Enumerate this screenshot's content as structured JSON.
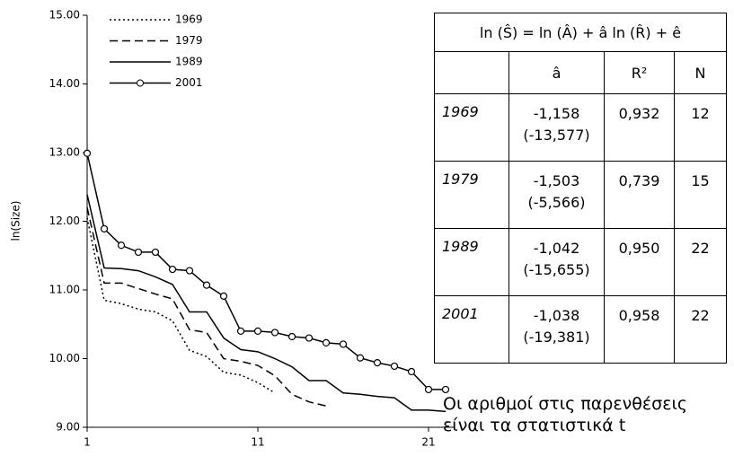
{
  "chart_data": {
    "type": "line",
    "ylabel": "ln(Size)",
    "x": [
      1,
      2,
      3,
      4,
      5,
      6,
      7,
      8,
      9,
      10,
      11,
      12,
      13,
      14,
      15,
      16,
      17,
      18,
      19,
      20,
      21,
      22
    ],
    "xlim": [
      1,
      22.5
    ],
    "xticks": [
      1,
      11,
      21
    ],
    "ylim": [
      9,
      15
    ],
    "yticks": [
      {
        "value": 9,
        "label": "9.00"
      },
      {
        "value": 10,
        "label": "10.00"
      },
      {
        "value": 11,
        "label": "11.00"
      },
      {
        "value": 12,
        "label": "12.00"
      },
      {
        "value": 13,
        "label": "13.00"
      },
      {
        "value": 14,
        "label": "14.00"
      },
      {
        "value": 15,
        "label": "15.00"
      }
    ],
    "series": [
      {
        "name": "1969",
        "color": "#000000",
        "dash": "2,3",
        "values": [
          12.05,
          10.85,
          10.8,
          10.72,
          10.68,
          10.55,
          10.12,
          10.03,
          9.8,
          9.76,
          9.65,
          9.5,
          null,
          null,
          null,
          null,
          null,
          null,
          null,
          null,
          null,
          null
        ]
      },
      {
        "name": "1979",
        "color": "#000000",
        "dash": "9,5",
        "values": [
          12.2,
          11.1,
          11.1,
          11.02,
          10.94,
          10.87,
          10.42,
          10.38,
          10.0,
          9.96,
          9.9,
          9.75,
          9.48,
          9.37,
          9.31,
          null,
          null,
          null,
          null,
          null,
          null,
          null
        ]
      },
      {
        "name": "1989",
        "color": "#000000",
        "dash": "none",
        "values": [
          12.39,
          11.32,
          11.31,
          11.28,
          11.19,
          11.08,
          10.68,
          10.68,
          10.3,
          10.13,
          10.1,
          10.0,
          9.88,
          9.68,
          9.68,
          9.5,
          9.48,
          9.45,
          9.43,
          9.25,
          9.25,
          9.23
        ]
      },
      {
        "name": "2001",
        "color": "#000000",
        "dash": "none",
        "marker": "circle",
        "values": [
          12.99,
          11.89,
          11.65,
          11.55,
          11.55,
          11.3,
          11.28,
          11.07,
          10.91,
          10.4,
          10.4,
          10.38,
          10.32,
          10.3,
          10.23,
          10.21,
          10.01,
          9.94,
          9.89,
          9.81,
          9.55,
          9.55
        ]
      }
    ]
  },
  "table": {
    "title": "ln (Ŝ) = ln (Â) + â ln (R̂) + ê",
    "header": [
      "â",
      "R²",
      "N"
    ],
    "rows": [
      {
        "year": "1969",
        "a": "-1,158",
        "t": "(-13,577)",
        "r2": "0,932",
        "n": "12"
      },
      {
        "year": "1979",
        "a": "-1,503",
        "t": "(-5,566)",
        "r2": "0,739",
        "n": "15"
      },
      {
        "year": "1989",
        "a": "-1,042",
        "t": "(-15,655)",
        "r2": "0,950",
        "n": "22"
      },
      {
        "year": "2001",
        "a": "-1,038",
        "t": "(-19,381)",
        "r2": "0,958",
        "n": "22"
      }
    ]
  },
  "note": "Οι αριθμοί στις παρενθέσεις είναι τα στατιστικά t"
}
